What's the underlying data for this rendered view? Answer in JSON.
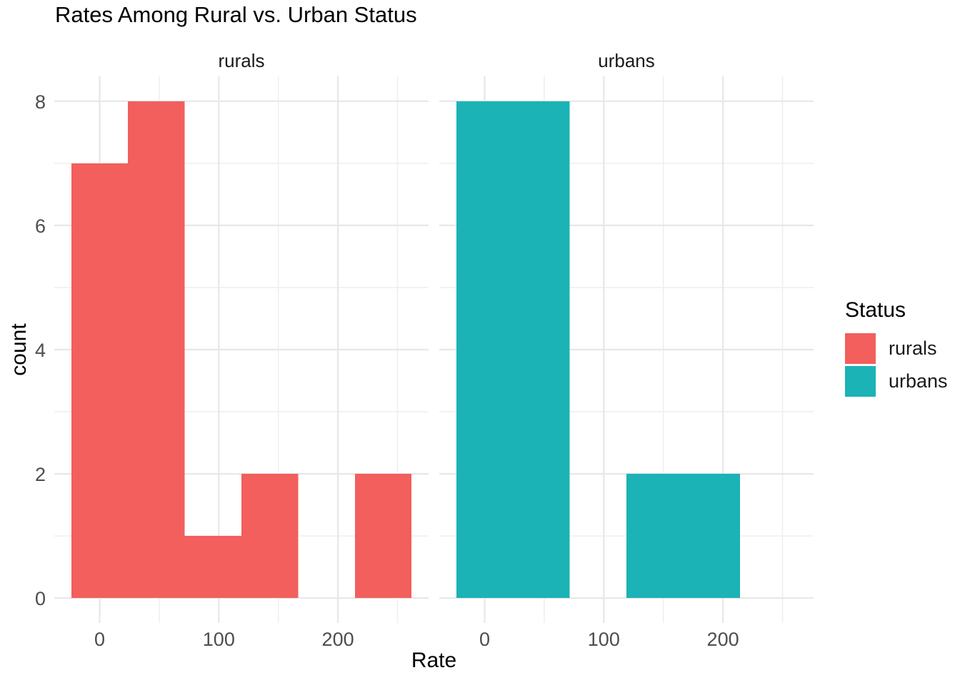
{
  "colors": {
    "rurals": "#F25F5C",
    "urbans": "#1BB3B6",
    "grid_major": "#E7E7E7",
    "grid_minor": "#EFEFEF",
    "axis_text": "#4D4D4D",
    "text": "#1A1A1A",
    "background": "#FFFFFF"
  },
  "chart_data": {
    "type": "bar",
    "subtype": "faceted-histogram",
    "title": "Rates Among Rural vs. Urban Status",
    "xlabel": "Rate",
    "ylabel": "count",
    "grid": true,
    "x_ticks": [
      0,
      100,
      200
    ],
    "x_minor": [
      50,
      150,
      250
    ],
    "y_ticks": [
      0,
      2,
      4,
      6,
      8
    ],
    "y_minor": [
      1,
      3,
      5,
      7
    ],
    "xlim": [
      -38.1,
      276.1
    ],
    "ylim": [
      -0.4,
      8.4
    ],
    "bin_width": 47.6,
    "bin_edges": [
      -23.8,
      23.8,
      71.4,
      119.0,
      166.6,
      214.2,
      261.8
    ],
    "facets": [
      {
        "label": "rurals",
        "color": "#F25F5C",
        "counts": [
          7,
          8,
          1,
          2,
          0,
          2
        ]
      },
      {
        "label": "urbans",
        "color": "#1BB3B6",
        "counts": [
          8,
          8,
          0,
          2,
          2,
          0
        ]
      }
    ],
    "legend": {
      "title": "Status",
      "position": "right",
      "entries": [
        {
          "label": "rurals",
          "color": "#F25F5C"
        },
        {
          "label": "urbans",
          "color": "#1BB3B6"
        }
      ]
    }
  }
}
